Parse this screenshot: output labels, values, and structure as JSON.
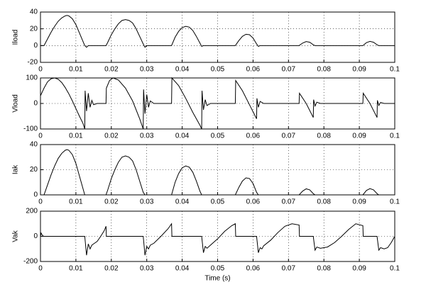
{
  "chart_data": [
    {
      "type": "line",
      "ylabel": "Iload",
      "color": "#000000",
      "grid": true,
      "xlim": [
        0,
        0.1
      ],
      "xticks": [
        0,
        0.01,
        0.02,
        0.03,
        0.04,
        0.05,
        0.06,
        0.07,
        0.08,
        0.09,
        0.1
      ],
      "ylim": [
        -20,
        40
      ],
      "yticks": [
        -20,
        0,
        20,
        40
      ],
      "x": [
        0,
        0.001,
        0.002,
        0.003,
        0.004,
        0.005,
        0.006,
        0.007,
        0.0075,
        0.008,
        0.009,
        0.01,
        0.011,
        0.012,
        0.0125,
        0.013,
        0.0135,
        0.0185,
        0.019,
        0.02,
        0.021,
        0.022,
        0.023,
        0.024,
        0.025,
        0.026,
        0.027,
        0.028,
        0.029,
        0.0295,
        0.03,
        0.037,
        0.038,
        0.039,
        0.04,
        0.041,
        0.042,
        0.043,
        0.044,
        0.045,
        0.0455,
        0.046,
        0.055,
        0.056,
        0.057,
        0.058,
        0.059,
        0.06,
        0.061,
        0.0615,
        0.062,
        0.073,
        0.074,
        0.075,
        0.076,
        0.077,
        0.0775,
        0.091,
        0.092,
        0.093,
        0.094,
        0.095,
        0.0955,
        0.1
      ],
      "values": [
        0,
        0,
        8,
        16,
        23,
        29,
        33,
        35.5,
        36,
        35.5,
        32,
        25,
        15,
        5,
        0,
        -2,
        0,
        0,
        4,
        13,
        20,
        26,
        30,
        31,
        30,
        27,
        20,
        11,
        2,
        -2,
        0,
        0,
        10,
        17,
        21.5,
        23,
        22,
        18,
        11,
        3,
        -1,
        0,
        0,
        6,
        11,
        13.5,
        13,
        9,
        2,
        -1,
        0,
        0,
        3,
        4.8,
        4,
        1,
        0,
        0,
        3.5,
        5,
        4,
        1,
        0,
        0
      ]
    },
    {
      "type": "line",
      "ylabel": "Vload",
      "color": "#000000",
      "grid": true,
      "xlim": [
        0,
        0.1
      ],
      "xticks": [
        0,
        0.01,
        0.02,
        0.03,
        0.04,
        0.05,
        0.06,
        0.07,
        0.08,
        0.09,
        0.1
      ],
      "ylim": [
        -100,
        100
      ],
      "yticks": [
        -100,
        0,
        100
      ],
      "x": [
        0,
        0.001,
        0.002,
        0.003,
        0.004,
        0.005,
        0.006,
        0.007,
        0.008,
        0.009,
        0.01,
        0.011,
        0.012,
        0.0125,
        0.0126,
        0.013,
        0.0135,
        0.014,
        0.0145,
        0.015,
        0.016,
        0.0185,
        0.0186,
        0.0195,
        0.0205,
        0.022,
        0.024,
        0.026,
        0.028,
        0.029,
        0.0291,
        0.0295,
        0.03,
        0.0305,
        0.031,
        0.032,
        0.037,
        0.0371,
        0.039,
        0.041,
        0.043,
        0.045,
        0.0455,
        0.0456,
        0.046,
        0.0465,
        0.047,
        0.048,
        0.055,
        0.0551,
        0.057,
        0.059,
        0.061,
        0.0611,
        0.0615,
        0.062,
        0.063,
        0.073,
        0.0731,
        0.075,
        0.077,
        0.0771,
        0.0775,
        0.078,
        0.079,
        0.091,
        0.0911,
        0.093,
        0.095,
        0.0951,
        0.0955,
        0.096,
        0.097,
        0.1
      ],
      "values": [
        30,
        60,
        85,
        97,
        100,
        95,
        82,
        62,
        38,
        10,
        -20,
        -50,
        -78,
        -100,
        50,
        -30,
        40,
        -15,
        12,
        -5,
        0,
        0,
        60,
        90,
        100,
        92,
        60,
        10,
        -60,
        -100,
        55,
        -40,
        35,
        -15,
        10,
        0,
        0,
        100,
        70,
        20,
        -35,
        -85,
        -100,
        50,
        -25,
        15,
        -8,
        0,
        0,
        90,
        50,
        -5,
        -60,
        20,
        -15,
        8,
        0,
        0,
        40,
        0,
        -55,
        15,
        -10,
        5,
        0,
        0,
        40,
        0,
        -55,
        12,
        -8,
        4,
        0,
        0
      ]
    },
    {
      "type": "line",
      "ylabel": "Iak",
      "color": "#000000",
      "grid": true,
      "xlim": [
        0,
        0.1
      ],
      "xticks": [
        0,
        0.01,
        0.02,
        0.03,
        0.04,
        0.05,
        0.06,
        0.07,
        0.08,
        0.09,
        0.1
      ],
      "ylim": [
        0,
        40
      ],
      "yticks": [
        0,
        20,
        40
      ],
      "x": [
        0,
        0.001,
        0.002,
        0.003,
        0.004,
        0.005,
        0.006,
        0.007,
        0.0075,
        0.008,
        0.009,
        0.01,
        0.011,
        0.012,
        0.0125,
        0.0185,
        0.019,
        0.02,
        0.021,
        0.022,
        0.023,
        0.024,
        0.025,
        0.026,
        0.027,
        0.028,
        0.029,
        0.0295,
        0.037,
        0.038,
        0.039,
        0.04,
        0.041,
        0.042,
        0.043,
        0.044,
        0.045,
        0.0455,
        0.055,
        0.056,
        0.057,
        0.058,
        0.059,
        0.06,
        0.061,
        0.0615,
        0.073,
        0.074,
        0.075,
        0.076,
        0.077,
        0.0775,
        0.091,
        0.092,
        0.093,
        0.094,
        0.095,
        0.0955,
        0.1
      ],
      "values": [
        0,
        0,
        8,
        16,
        23,
        29,
        33,
        35.5,
        36,
        35.5,
        32,
        25,
        15,
        5,
        0,
        0,
        4,
        13,
        20,
        26,
        30,
        31,
        30,
        27,
        20,
        11,
        2,
        0,
        0,
        10,
        17,
        21.5,
        23,
        22,
        18,
        11,
        3,
        0,
        0,
        6,
        11,
        13.5,
        13,
        9,
        2,
        0,
        0,
        3,
        4.8,
        4,
        1,
        0,
        0,
        3.5,
        5,
        4,
        1,
        0,
        0
      ]
    },
    {
      "type": "line",
      "ylabel": "Vak",
      "xlabel": "Time (s)",
      "color": "#000000",
      "grid": true,
      "xlim": [
        0,
        0.1
      ],
      "xticks": [
        0,
        0.01,
        0.02,
        0.03,
        0.04,
        0.05,
        0.06,
        0.07,
        0.08,
        0.09,
        0.1
      ],
      "ylim": [
        -200,
        200
      ],
      "yticks": [
        -200,
        0,
        200
      ],
      "x": [
        0,
        0.0002,
        0.0006,
        0.001,
        0.0125,
        0.013,
        0.0135,
        0.014,
        0.0145,
        0.015,
        0.016,
        0.017,
        0.018,
        0.0185,
        0.0186,
        0.029,
        0.0295,
        0.03,
        0.0305,
        0.031,
        0.032,
        0.034,
        0.036,
        0.037,
        0.0371,
        0.0455,
        0.046,
        0.0465,
        0.047,
        0.048,
        0.05,
        0.052,
        0.054,
        0.055,
        0.0551,
        0.061,
        0.0615,
        0.062,
        0.0625,
        0.063,
        0.065,
        0.067,
        0.069,
        0.071,
        0.073,
        0.0731,
        0.077,
        0.0775,
        0.078,
        0.079,
        0.081,
        0.083,
        0.085,
        0.087,
        0.089,
        0.091,
        0.0911,
        0.095,
        0.0955,
        0.096,
        0.097,
        0.098,
        0.099,
        0.1
      ],
      "values": [
        0,
        25,
        5,
        0,
        0,
        -150,
        -60,
        -100,
        -70,
        -60,
        -40,
        0,
        45,
        80,
        0,
        0,
        -150,
        -80,
        -100,
        -70,
        -55,
        0,
        60,
        100,
        0,
        0,
        -130,
        -80,
        -95,
        -70,
        -20,
        40,
        85,
        100,
        0,
        0,
        -130,
        -90,
        -100,
        -75,
        -30,
        30,
        80,
        100,
        90,
        0,
        0,
        -110,
        -85,
        -95,
        -85,
        -50,
        0,
        55,
        100,
        85,
        0,
        0,
        -110,
        -90,
        -100,
        -90,
        -50,
        0
      ]
    }
  ]
}
